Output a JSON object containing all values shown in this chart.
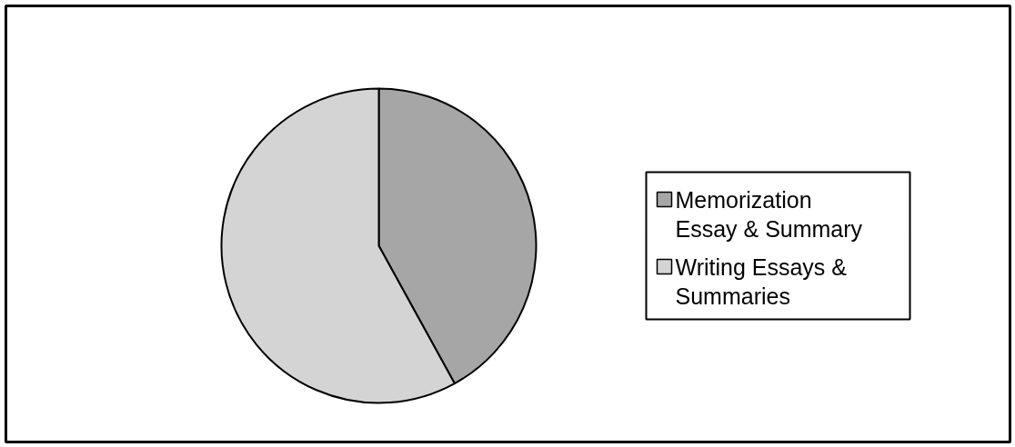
{
  "chart_data": {
    "type": "pie",
    "categories": [
      "Memorization Essay & Summary",
      "Writing Essays & Summaries"
    ],
    "values": [
      42,
      58
    ],
    "colors": [
      "#a6a6a6",
      "#d4d4d4"
    ],
    "legend": "right"
  }
}
